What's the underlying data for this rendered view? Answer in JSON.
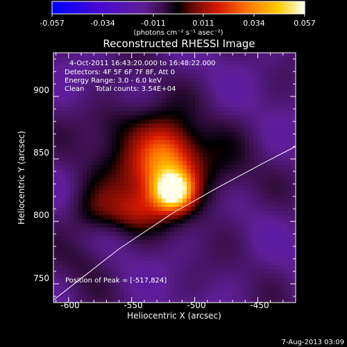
{
  "chart_data": {
    "type": "heatmap",
    "title": "Reconstructed RHESSI Image",
    "xlabel": "Heliocentric X (arcsec)",
    "ylabel": "Heliocentric Y (arcsec)",
    "xlim": [
      -612,
      -420
    ],
    "ylim": [
      735,
      935
    ],
    "x_ticks": [
      "-600",
      "-550",
      "-500",
      "-450"
    ],
    "x_tick_values": [
      -600,
      -550,
      -500,
      -450
    ],
    "y_ticks": [
      "750",
      "800",
      "850",
      "900"
    ],
    "y_tick_values": [
      750,
      800,
      850,
      900
    ],
    "colorbar": {
      "min": -0.057,
      "max": 0.057,
      "tick_labels": [
        "-0.057",
        "-0.034",
        "-0.011",
        "0.011",
        "0.034",
        "0.057"
      ],
      "units": "(photons cm⁻² s⁻¹ asec⁻²)"
    },
    "annotations": {
      "time_range": "4-Oct-2011 16:43:20.000 to 16:48:22.000",
      "detectors": "Detectors: 4F 5F 6F 7F 8F, Att 0",
      "energy": "Energy Range: 3.0 - 6.0 keV",
      "method_counts": "Clean     Total counts: 3.54E+04",
      "peak": "Position of Peak = [-517,824]"
    },
    "peak": {
      "x": -517,
      "y": 824
    },
    "limb": [
      [
        -612,
        737
      ],
      [
        -560,
        778
      ],
      [
        -517,
        807
      ],
      [
        -480,
        828
      ],
      [
        -445,
        847
      ],
      [
        -420,
        860
      ]
    ],
    "sources": [
      {
        "x": -517,
        "y": 824,
        "sx": 10,
        "sy": 10,
        "amp": 0.057
      },
      {
        "x": -522,
        "y": 848,
        "sx": 16,
        "sy": 22,
        "amp": 0.034
      },
      {
        "x": -533,
        "y": 840,
        "sx": 28,
        "sy": 24,
        "amp": 0.02
      },
      {
        "x": -548,
        "y": 808,
        "sx": 16,
        "sy": 12,
        "amp": 0.017
      },
      {
        "x": -580,
        "y": 808,
        "sx": 14,
        "sy": 14,
        "amp": 0.013
      },
      {
        "x": -560,
        "y": 878,
        "sx": 20,
        "sy": 14,
        "amp": 0.009
      },
      {
        "x": -482,
        "y": 838,
        "sx": 18,
        "sy": 22,
        "amp": 0.008
      },
      {
        "x": -588,
        "y": 770,
        "sx": 14,
        "sy": 12,
        "amp": 0.005
      }
    ]
  },
  "footer": {
    "date": "7-Aug-2013 03:09"
  }
}
